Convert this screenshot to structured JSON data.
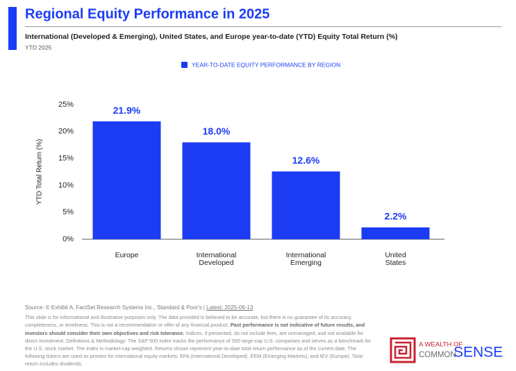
{
  "chart_data": {
    "type": "bar",
    "title": "Regional Equity Performance in 2025",
    "subtitle": "International (Developed & Emerging), United States, and Europe year-to-date (YTD) Equity Total Return (%)",
    "period": "YTD 2025",
    "y_label": "YTD Total Return (%)",
    "categories": [
      "Europe",
      "International Developed",
      "International Emerging",
      "United States"
    ],
    "series": [
      {
        "name": "YEAR-TO-DATE EQUITY PERFORMANCE BY REGION",
        "color": "#1c3cf4",
        "values": [
          21.9,
          18.0,
          12.6,
          2.2
        ],
        "value_labels": [
          "21.9%",
          "18.0%",
          "12.6%",
          "2.2%"
        ]
      }
    ],
    "ylim": [
      0,
      25
    ],
    "yticks": [
      {
        "value": 0,
        "label": "0%"
      },
      {
        "value": 5,
        "label": "5%"
      },
      {
        "value": 10,
        "label": "10%"
      },
      {
        "value": 15,
        "label": "15%"
      },
      {
        "value": 20,
        "label": "20%"
      },
      {
        "value": 25,
        "label": "25%"
      }
    ],
    "grid": false,
    "legend": "top"
  },
  "footer": {
    "source": "Source: © Exhibit A, FactSet Research Systems Inc., Standard & Poor's | ",
    "latest": "Latest: 2025-06-13",
    "disclaimer_1": "This slide is for informational and illustrative purposes only. The data provided is believed to be accurate, but there is no guarantee of its accuracy, completeness, or timeliness. This is not a recommendation or offer of any financial product. ",
    "disclaimer_bold": "Past performance is not indicative of future results, and investors should consider their own objectives and risk tolerance.",
    "disclaimer_2": " Indices, if presented, do not include fees, are unmanaged, and not available for direct investment. Definitions & Methodology: The S&P 500 Index tracks the performance of 500 large-cap U.S. companies and serves as a benchmark for the U.S. stock market. The index is market-cap weighted. Returns shown represent year-to-date total return performance as of the current date. The following tickers are used as proxies for international equity markets: EFA (International Developed), EEM (Emerging Markets), and IEV (Europe). Total return includes dividends."
  },
  "logo": {
    "line1": "A WEALTH OF",
    "common": "COMMON",
    "sense": "SENSE"
  }
}
